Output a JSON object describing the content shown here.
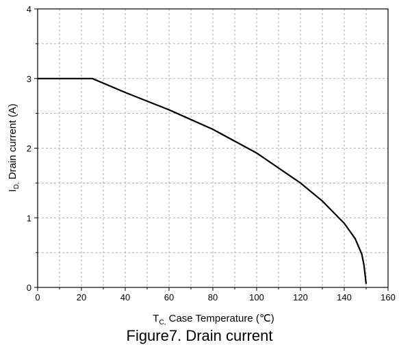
{
  "caption": "Figure7. Drain current",
  "chart_data": {
    "type": "line",
    "title": "",
    "xlabel": {
      "main": "T",
      "sub": "C,",
      "rest": " Case Temperature (℃)"
    },
    "ylabel": {
      "main": "I",
      "sub": "D,",
      "rest": " Drain current (A)"
    },
    "xlim": [
      0,
      160
    ],
    "ylim": [
      0,
      4
    ],
    "xticks": [
      "0",
      "20",
      "40",
      "60",
      "80",
      "100",
      "120",
      "140",
      "160"
    ],
    "yticks": [
      "0",
      "1",
      "2",
      "3",
      "4"
    ],
    "grid": "dashed",
    "series": [
      {
        "x": [
          0,
          25,
          40,
          60,
          80,
          100,
          120,
          130,
          140,
          145,
          148,
          149,
          150
        ],
        "y": [
          3.0,
          3.0,
          2.8,
          2.55,
          2.27,
          1.93,
          1.5,
          1.24,
          0.92,
          0.7,
          0.48,
          0.32,
          0.05
        ]
      }
    ]
  }
}
